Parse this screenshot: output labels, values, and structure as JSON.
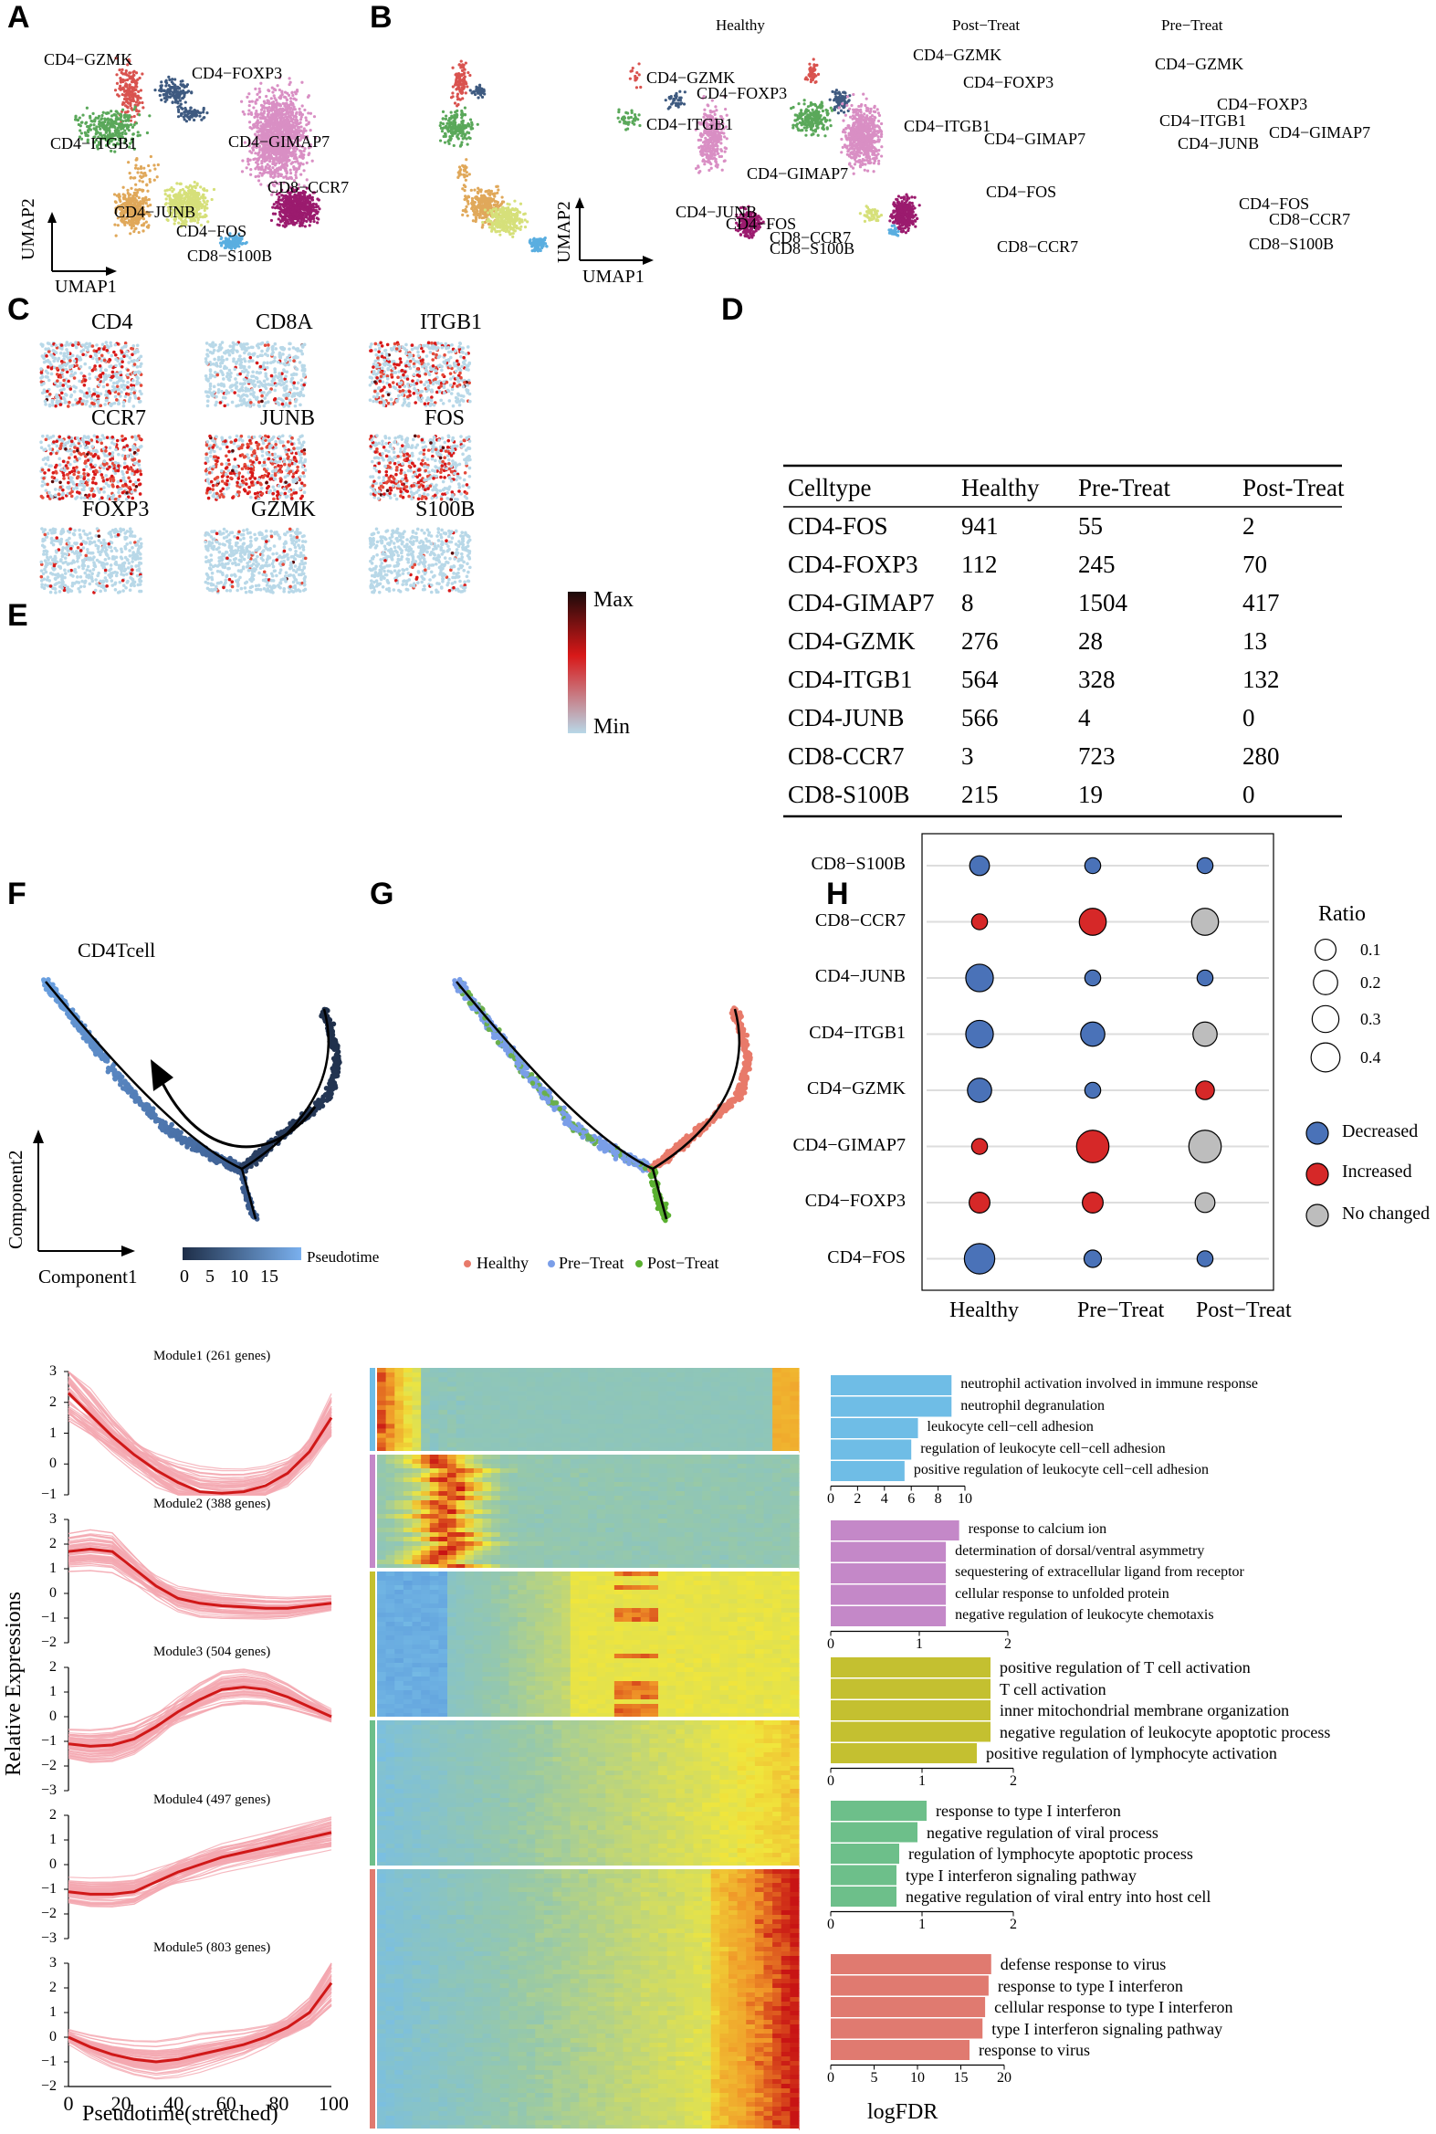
{
  "panel_labels": [
    "A",
    "B",
    "C",
    "D",
    "E",
    "F",
    "G",
    "H"
  ],
  "colors": {
    "gzmk": "#d9534f",
    "foxp3": "#3e5a80",
    "itgb1": "#5aa85a",
    "gimap7": "#d98fc4",
    "junb": "#e0a85a",
    "fos": "#d6e07a",
    "ccr7": "#9b1b6e",
    "s100b": "#5aaee0",
    "decreased": "#4a72b8",
    "increased": "#d62828",
    "nochange": "#bdbdbd"
  },
  "panelA": {
    "clusters": [
      "CD4−GZMK",
      "CD4−FOXP3",
      "CD4−ITGB1",
      "CD4−GIMAP7",
      "CD8−CCR7",
      "CD4−JUNB",
      "CD4−FOS",
      "CD8−S100B"
    ],
    "xaxis": "UMAP1",
    "yaxis": "UMAP2"
  },
  "panelB": {
    "conditions": [
      "Healthy",
      "Post−Treat",
      "Pre−Treat"
    ],
    "healthy_labels": [
      "CD4−GZMK",
      "CD4−FOXP3",
      "CD4−ITGB1",
      "CD4−GIMAP7",
      "CD4−JUNB",
      "CD4−FOS",
      "CD8−CCR7",
      "CD8−S100B"
    ],
    "post_labels": [
      "CD4−GZMK",
      "CD4−FOXP3",
      "CD4−ITGB1",
      "CD4−GIMAP7",
      "CD4−FOS",
      "CD8−CCR7"
    ],
    "pre_labels": [
      "CD4−GZMK",
      "CD4−FOXP3",
      "CD4−ITGB1",
      "CD4−GIMAP7",
      "CD4−JUNB",
      "CD4−FOS",
      "CD8−CCR7",
      "CD8−S100B"
    ],
    "xaxis": "UMAP1",
    "yaxis": "UMAP2"
  },
  "panelC": {
    "genes": [
      "CD4",
      "CD8A",
      "ITGB1",
      "CCR7",
      "JUNB",
      "FOS",
      "FOXP3",
      "GZMK",
      "S100B"
    ],
    "scale_max": "Max",
    "scale_min": "Min"
  },
  "panelD": {
    "table": {
      "headers": [
        "Celltype",
        "Healthy",
        "Pre-Treat",
        "Post-Treat"
      ],
      "rows": [
        [
          "CD4-FOS",
          "941",
          "55",
          "2"
        ],
        [
          "CD4-FOXP3",
          "112",
          "245",
          "70"
        ],
        [
          "CD4-GIMAP7",
          "8",
          "1504",
          "417"
        ],
        [
          "CD4-GZMK",
          "276",
          "28",
          "13"
        ],
        [
          "CD4-ITGB1",
          "564",
          "328",
          "132"
        ],
        [
          "CD4-JUNB",
          "566",
          "4",
          "0"
        ],
        [
          "CD8-CCR7",
          "3",
          "723",
          "280"
        ],
        [
          "CD8-S100B",
          "215",
          "19",
          "0"
        ]
      ]
    },
    "bubble": {
      "rows": [
        "CD8−S100B",
        "CD8−CCR7",
        "CD4−JUNB",
        "CD4−ITGB1",
        "CD4−GZMK",
        "CD4−GIMAP7",
        "CD4−FOXP3",
        "CD4−FOS"
      ],
      "cols": [
        "Healthy",
        "Pre−Treat",
        "Post−Treat"
      ],
      "ratio": [
        [
          0.05,
          0.02,
          0.02
        ],
        [
          0.02,
          0.14,
          0.14
        ],
        [
          0.15,
          0.02,
          0.02
        ],
        [
          0.15,
          0.1,
          0.1
        ],
        [
          0.1,
          0.02,
          0.04
        ],
        [
          0.02,
          0.24,
          0.24
        ],
        [
          0.06,
          0.06,
          0.05
        ],
        [
          0.2,
          0.03,
          0.02
        ]
      ],
      "status": [
        [
          "d",
          "d",
          "d"
        ],
        [
          "i",
          "i",
          "n"
        ],
        [
          "d",
          "d",
          "d"
        ],
        [
          "d",
          "d",
          "n"
        ],
        [
          "d",
          "d",
          "i"
        ],
        [
          "i",
          "i",
          "n"
        ],
        [
          "i",
          "i",
          "n"
        ],
        [
          "d",
          "d",
          "d"
        ]
      ],
      "legend_title": "Ratio",
      "legend_sizes": [
        "0.1",
        "0.2",
        "0.3",
        "0.4"
      ],
      "legend_status": [
        "Decreased",
        "Increased",
        "No changed"
      ]
    }
  },
  "panelE": {
    "title": "CD4Tcell",
    "xaxis": "Component1",
    "yaxis": "Component2",
    "pseudotime_label": "Pseudotime",
    "pseudotime_ticks": [
      "0",
      "5",
      "10",
      "15"
    ],
    "legend": [
      "Healthy",
      "Pre−Treat",
      "Post−Treat"
    ]
  },
  "panelF": {
    "modules": [
      {
        "title": "Module1 (261 genes)",
        "ticks": [
          "3",
          "2",
          "1",
          "0",
          "−1"
        ],
        "curve": [
          2.3,
          1.6,
          0.9,
          0.3,
          -0.2,
          -0.6,
          -0.9,
          -0.95,
          -0.9,
          -0.7,
          -0.3,
          0.4,
          1.5
        ]
      },
      {
        "title": "Module2 (388 genes)",
        "ticks": [
          "3",
          "2",
          "1",
          "0",
          "−1",
          "−2"
        ],
        "curve": [
          1.7,
          1.8,
          1.7,
          1.0,
          0.3,
          -0.2,
          -0.4,
          -0.5,
          -0.55,
          -0.6,
          -0.6,
          -0.5,
          -0.4
        ]
      },
      {
        "title": "Module3 (504 genes)",
        "ticks": [
          "2",
          "1",
          "0",
          "−1",
          "−2",
          "−3"
        ],
        "curve": [
          -1.1,
          -1.2,
          -1.15,
          -0.9,
          -0.4,
          0.2,
          0.7,
          1.1,
          1.2,
          1.1,
          0.8,
          0.4,
          0.0
        ]
      },
      {
        "title": "Module4 (497 genes)",
        "ticks": [
          "2",
          "1",
          "0",
          "−1",
          "−2",
          "−3"
        ],
        "curve": [
          -1.1,
          -1.2,
          -1.2,
          -1.1,
          -0.7,
          -0.3,
          0.0,
          0.3,
          0.5,
          0.7,
          0.9,
          1.1,
          1.3
        ]
      },
      {
        "title": "Module5 (803 genes)",
        "ticks": [
          "3",
          "2",
          "1",
          "0",
          "−1",
          "−2"
        ],
        "curve": [
          0.0,
          -0.4,
          -0.7,
          -0.9,
          -1.0,
          -0.9,
          -0.7,
          -0.5,
          -0.3,
          0.0,
          0.4,
          1.0,
          2.2
        ]
      }
    ],
    "xticks": [
      "0",
      "20",
      "40",
      "60",
      "80",
      "100"
    ],
    "xaxis": "Pseudotime(stretched)",
    "yaxis": "Relative Expressions"
  },
  "panelH": {
    "groups": [
      {
        "terms": [
          "neutrophil activation involved in immune response",
          "neutrophil degranulation",
          "leukocyte cell−cell adhesion",
          "regulation of leukocyte cell−cell adhesion",
          "positive regulation of leukocyte cell−cell adhesion"
        ],
        "values": [
          9.0,
          9.0,
          6.5,
          6.0,
          5.5
        ],
        "max": 10,
        "ticks": [
          "0",
          "2",
          "4",
          "6",
          "8",
          "10"
        ],
        "color": "#6fbde6"
      },
      {
        "terms": [
          "response to calcium ion",
          "determination of dorsal/ventral asymmetry",
          "sequestering of extracellular ligand from receptor",
          "cellular response to unfolded protein",
          "negative regulation of leukocyte chemotaxis"
        ],
        "values": [
          1.45,
          1.3,
          1.3,
          1.3,
          1.3
        ],
        "max": 2,
        "ticks": [
          "0",
          "1",
          "2"
        ],
        "color": "#c488c8"
      },
      {
        "terms": [
          "positive regulation of T cell activation",
          "T cell activation",
          "inner mitochondrial membrane organization",
          "negative regulation of leukocyte apoptotic process",
          "positive regulation of lymphocyte activation"
        ],
        "values": [
          1.75,
          1.75,
          1.75,
          1.75,
          1.6
        ],
        "max": 2,
        "ticks": [
          "0",
          "1",
          "2"
        ],
        "color": "#c4c030"
      },
      {
        "terms": [
          "response to type I interferon",
          "negative regulation of viral process",
          "regulation of lymphocyte apoptotic process",
          "type I interferon signaling pathway",
          "negative regulation of viral entry into host cell"
        ],
        "values": [
          1.05,
          0.95,
          0.75,
          0.72,
          0.72
        ],
        "max": 2,
        "ticks": [
          "0",
          "1",
          "2"
        ],
        "color": "#6dbf8a"
      },
      {
        "terms": [
          "defense response to virus",
          "response to type I interferon",
          "cellular response to type I interferon",
          "type I interferon signaling pathway",
          "response to virus"
        ],
        "values": [
          18.5,
          18.2,
          17.8,
          17.5,
          16.0
        ],
        "max": 20,
        "ticks": [
          "0",
          "5",
          "10",
          "15",
          "20"
        ],
        "color": "#e07a70"
      }
    ],
    "xaxis": "logFDR"
  }
}
